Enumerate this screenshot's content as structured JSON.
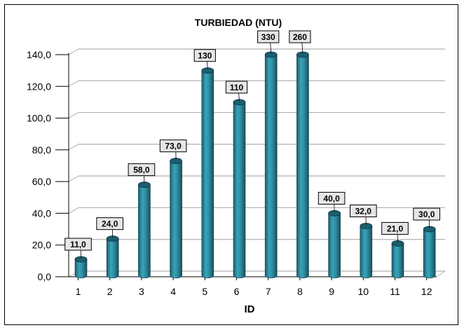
{
  "chart_data": {
    "type": "bar",
    "title": "TURBIEDAD (NTU)",
    "xlabel": "ID",
    "ylabel": "",
    "categories": [
      "1",
      "2",
      "3",
      "4",
      "5",
      "6",
      "7",
      "8",
      "9",
      "10",
      "11",
      "12"
    ],
    "values": [
      11,
      24,
      58,
      73,
      130,
      110,
      330,
      260,
      40,
      32,
      21,
      30
    ],
    "data_labels": [
      "11,0",
      "24,0",
      "58,0",
      "73,0",
      "130",
      "110",
      "330",
      "260",
      "40,0",
      "32,0",
      "21,0",
      "30,0"
    ],
    "yticks": [
      "0,0",
      "20,0",
      "40,0",
      "60,0",
      "80,0",
      "100,0",
      "120,0",
      "140,0"
    ],
    "ylim": [
      0,
      140
    ],
    "grid": true,
    "legend": "none",
    "colors": {
      "bar": "#2e8fa3",
      "bar_dark": "#1b5e6e",
      "bar_light": "#5ab4c6",
      "grid": "#b0b0b0",
      "label_bg": "#e6e6e6"
    }
  }
}
